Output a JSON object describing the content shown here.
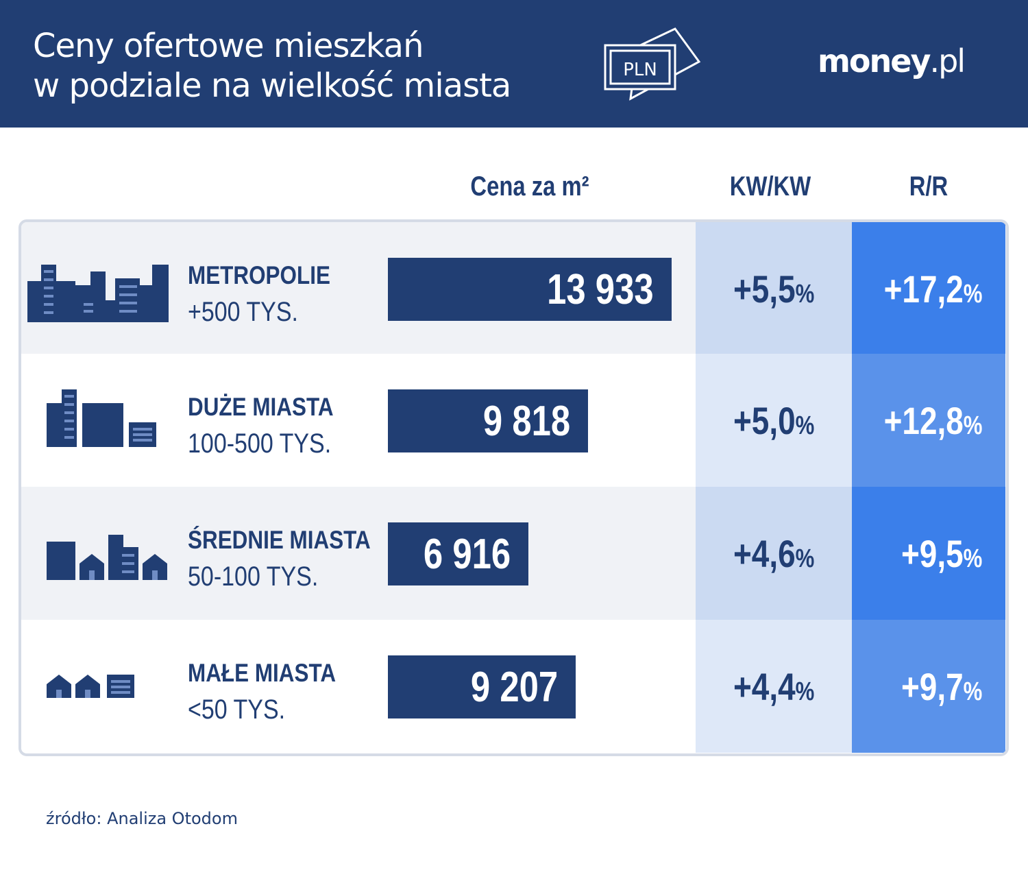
{
  "header": {
    "title_line1": "Ceny ofertowe mieszkań",
    "title_line2": "w podziale na wielkość miasta",
    "badge": "PLN",
    "logo_bold": "money",
    "logo_light": ".pl"
  },
  "columns": {
    "price": "Cena za m²",
    "qoq": "KW/KW",
    "yoy": "R/R"
  },
  "colors": {
    "navy": "#213e73",
    "kw_dark": "#cbdaf2",
    "kw_light": "#dee8f8",
    "rr_dark": "#3b7fea",
    "rr_light": "#5a92ea"
  },
  "chart_data": {
    "type": "bar",
    "categories": [
      "METROPOLIE +500 TYS.",
      "DUŻE MIASTA 100-500 TYS.",
      "ŚREDNIE MIASTA 50-100 TYS.",
      "MAŁE MIASTA <50 TYS."
    ],
    "values": [
      13933,
      9818,
      6916,
      9207
    ],
    "ylabel": "Cena za m²"
  },
  "rows": [
    {
      "name": "METROPOLIE",
      "sub": "+500 TYS.",
      "price": "13 933",
      "value": 13933,
      "kw": "+5,5",
      "rr": "+17,2",
      "icon": "metropolis-icon"
    },
    {
      "name": "DUŻE MIASTA",
      "sub": "100-500 TYS.",
      "price": "9 818",
      "value": 9818,
      "kw": "+5,0",
      "rr": "+12,8",
      "icon": "large-city-icon"
    },
    {
      "name": "ŚREDNIE MIASTA",
      "sub": "50-100 TYS.",
      "price": "6 916",
      "value": 6916,
      "kw": "+4,6",
      "rr": "+9,5",
      "icon": "medium-city-icon"
    },
    {
      "name": "MAŁE MIASTA",
      "sub": "<50 TYS.",
      "price": "9 207",
      "value": 9207,
      "kw": "+4,4",
      "rr": "+9,7",
      "icon": "small-town-icon"
    }
  ],
  "pct_sign": "%",
  "source": "źródło: Analiza Otodom"
}
